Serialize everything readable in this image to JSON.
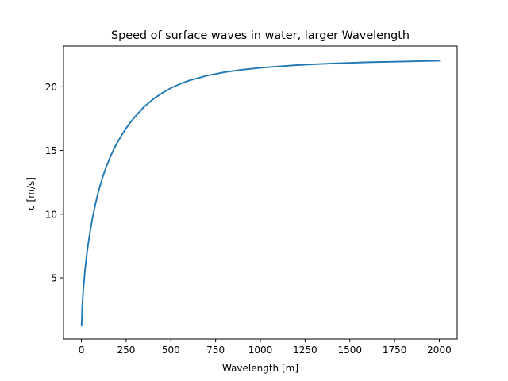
{
  "chart_data": {
    "type": "line",
    "title": "Speed of surface waves in water, larger Wavelength",
    "xlabel": "Wavelength [m]",
    "ylabel": "c [m/s]",
    "xlim": [
      -100,
      2100
    ],
    "ylim": [
      0.2,
      23.2
    ],
    "xticks": [
      0,
      250,
      500,
      750,
      1000,
      1250,
      1500,
      1750,
      2000
    ],
    "yticks": [
      5,
      10,
      15,
      20
    ],
    "grid": false,
    "colors": {
      "line": "#1f77b4",
      "axes": "#000000"
    },
    "series": [
      {
        "x": [
          1,
          5,
          10,
          20,
          30,
          40,
          50,
          60,
          70,
          80,
          90,
          100,
          120,
          140,
          160,
          180,
          200,
          225,
          250,
          275,
          300,
          350,
          400,
          450,
          500,
          550,
          600,
          700,
          800,
          900,
          1000,
          1100,
          1200,
          1300,
          1400,
          1500,
          1600,
          1700,
          1800,
          1900,
          2000
        ],
        "y": [
          1.25,
          2.79,
          3.95,
          5.58,
          6.83,
          7.86,
          8.75,
          9.54,
          10.25,
          10.89,
          11.48,
          12.02,
          12.96,
          13.76,
          14.45,
          15.06,
          15.61,
          16.2,
          16.75,
          17.23,
          17.65,
          18.42,
          19.02,
          19.5,
          19.9,
          20.22,
          20.48,
          20.87,
          21.15,
          21.34,
          21.49,
          21.6,
          21.7,
          21.77,
          21.83,
          21.88,
          21.93,
          21.96,
          21.99,
          22.02,
          22.05
        ]
      }
    ]
  }
}
